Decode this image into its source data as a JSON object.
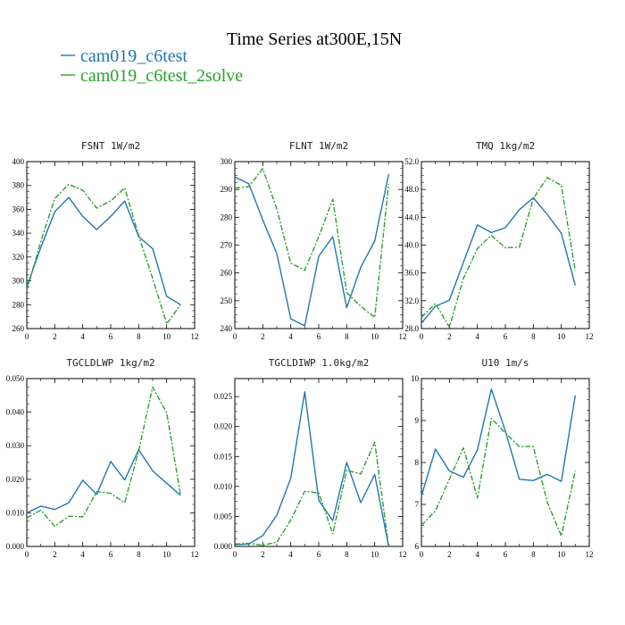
{
  "figure": {
    "title": "Time Series at300E,15N",
    "colors": {
      "series1": "#1f77b4",
      "series2": "#2ca02c"
    }
  },
  "chart_data": [
    {
      "type": "line",
      "title": "FSNT   1W/m2",
      "x": [
        0,
        1,
        2,
        3,
        4,
        5,
        6,
        7,
        8,
        9,
        10,
        11
      ],
      "xlim": [
        0,
        12
      ],
      "xticks": [
        0,
        2,
        4,
        6,
        8,
        10,
        12
      ],
      "ylim": [
        260,
        400
      ],
      "yticks": [
        260,
        280,
        300,
        320,
        340,
        360,
        380,
        400
      ],
      "ytick_labels": [
        "260",
        "280",
        "300",
        "320",
        "340",
        "360",
        "380",
        "400"
      ],
      "series": [
        {
          "name": "cam019_c6test",
          "values": [
            295,
            328,
            358,
            370,
            354,
            343,
            354,
            367,
            337,
            327,
            287,
            280
          ]
        },
        {
          "name": "cam019_c6test_2solve",
          "values": [
            292,
            333,
            369,
            381,
            376,
            361,
            367,
            378,
            338,
            302,
            264,
            280
          ]
        }
      ]
    },
    {
      "type": "line",
      "title": "FLNT   1W/m2",
      "x": [
        0,
        1,
        2,
        3,
        4,
        5,
        6,
        7,
        8,
        9,
        10,
        11
      ],
      "xlim": [
        0,
        12
      ],
      "xticks": [
        0,
        2,
        4,
        6,
        8,
        10,
        12
      ],
      "ylim": [
        240,
        300
      ],
      "yticks": [
        240,
        250,
        260,
        270,
        280,
        290,
        300
      ],
      "ytick_labels": [
        "240",
        "250",
        "260",
        "270",
        "280",
        "290",
        "300"
      ],
      "series": [
        {
          "name": "cam019_c6test",
          "values": [
            294.5,
            292,
            279,
            267,
            243.5,
            241,
            266,
            273,
            247.5,
            262,
            271.5,
            295.5
          ]
        },
        {
          "name": "cam019_c6test_2solve",
          "values": [
            290.5,
            291,
            297.5,
            283,
            263.5,
            261,
            273,
            286.5,
            253,
            248,
            244,
            292
          ]
        }
      ]
    },
    {
      "type": "line",
      "title": "TMQ   1kg/m2",
      "x": [
        0,
        1,
        2,
        3,
        4,
        5,
        6,
        7,
        8,
        9,
        10,
        11
      ],
      "xlim": [
        0,
        12
      ],
      "xticks": [
        0,
        2,
        4,
        6,
        8,
        10,
        12
      ],
      "ylim": [
        28,
        52
      ],
      "yticks": [
        28,
        32,
        36,
        40,
        44,
        48,
        52
      ],
      "ytick_labels": [
        "28.0",
        "32.0",
        "36.0",
        "40.0",
        "44.0",
        "48.0",
        "52.0"
      ],
      "series": [
        {
          "name": "cam019_c6test",
          "values": [
            28.8,
            31.2,
            32.1,
            37.5,
            42.9,
            41.8,
            42.5,
            45.1,
            46.8,
            44.4,
            41.7,
            34.2
          ]
        },
        {
          "name": "cam019_c6test_2solve",
          "values": [
            29.6,
            31.6,
            28.2,
            35.2,
            39.5,
            41.4,
            39.6,
            39.7,
            46.7,
            49.7,
            48.6,
            36.3
          ]
        }
      ]
    },
    {
      "type": "line",
      "title": "TGCLDLWP   1kg/m2",
      "x": [
        0,
        1,
        2,
        3,
        4,
        5,
        6,
        7,
        8,
        9,
        10,
        11
      ],
      "xlim": [
        0,
        12
      ],
      "xticks": [
        0,
        2,
        4,
        6,
        8,
        10,
        12
      ],
      "ylim": [
        0,
        0.05
      ],
      "yticks": [
        0,
        0.01,
        0.02,
        0.03,
        0.04,
        0.05
      ],
      "ytick_labels": [
        "0.000",
        "0.010",
        "0.020",
        "0.030",
        "0.040",
        "0.050"
      ],
      "series": [
        {
          "name": "cam019_c6test",
          "values": [
            0.01,
            0.012,
            0.011,
            0.013,
            0.0197,
            0.0155,
            0.0253,
            0.0198,
            0.0288,
            0.0225,
            0.0188,
            0.0152
          ]
        },
        {
          "name": "cam019_c6test_2solve",
          "values": [
            0.0085,
            0.0108,
            0.006,
            0.009,
            0.0088,
            0.0163,
            0.0158,
            0.013,
            0.0285,
            0.0475,
            0.0398,
            0.0152
          ]
        }
      ]
    },
    {
      "type": "line",
      "title": "TGCLDIWP   1.0kg/m2",
      "x": [
        0,
        1,
        2,
        3,
        4,
        5,
        6,
        7,
        8,
        9,
        10,
        11
      ],
      "xlim": [
        0,
        12
      ],
      "xticks": [
        0,
        2,
        4,
        6,
        8,
        10,
        12
      ],
      "ylim": [
        0,
        0.028
      ],
      "yticks": [
        0,
        0.005,
        0.01,
        0.015,
        0.02,
        0.025
      ],
      "ytick_labels": [
        "0.000",
        "0.005",
        "0.010",
        "0.015",
        "0.020",
        "0.025"
      ],
      "series": [
        {
          "name": "cam019_c6test",
          "values": [
            0.0003,
            0.0004,
            0.0018,
            0.0052,
            0.0114,
            0.0258,
            0.0077,
            0.0043,
            0.014,
            0.0073,
            0.012,
            0.0
          ]
        },
        {
          "name": "cam019_c6test_2solve",
          "values": [
            0.0004,
            0.0005,
            0.0002,
            0.0007,
            0.0044,
            0.0092,
            0.0089,
            0.0021,
            0.0127,
            0.0121,
            0.0174,
            0.0
          ]
        }
      ]
    },
    {
      "type": "line",
      "title": "U10   1m/s",
      "x": [
        0,
        1,
        2,
        3,
        4,
        5,
        6,
        7,
        8,
        9,
        10,
        11
      ],
      "xlim": [
        0,
        12
      ],
      "xticks": [
        0,
        2,
        4,
        6,
        8,
        10,
        12
      ],
      "ylim": [
        6,
        10
      ],
      "yticks": [
        6,
        7,
        8,
        9,
        10
      ],
      "ytick_labels": [
        "6",
        "7",
        "8",
        "9",
        "10"
      ],
      "series": [
        {
          "name": "cam019_c6test",
          "values": [
            7.2,
            8.32,
            7.8,
            7.65,
            8.3,
            9.75,
            8.75,
            7.6,
            7.57,
            7.72,
            7.55,
            9.6
          ]
        },
        {
          "name": "cam019_c6test_2solve",
          "values": [
            6.5,
            6.85,
            7.6,
            8.35,
            7.15,
            9.05,
            8.7,
            8.38,
            8.38,
            7.05,
            6.25,
            7.8
          ]
        }
      ]
    }
  ]
}
